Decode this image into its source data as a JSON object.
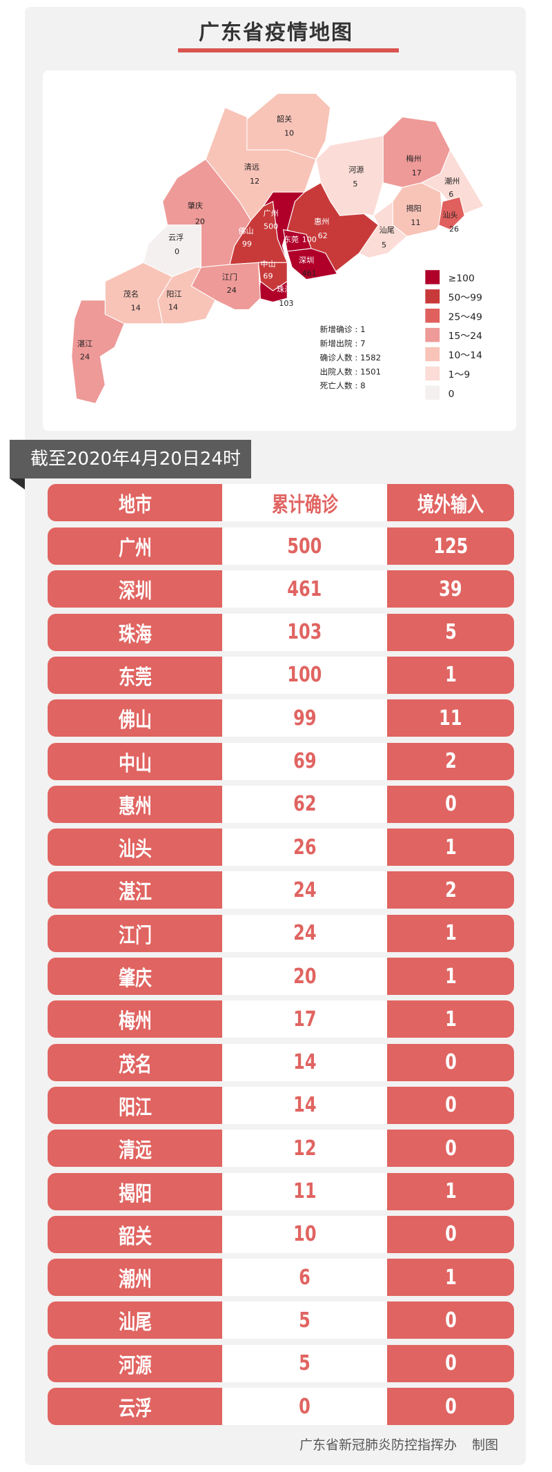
{
  "title": "广东省疫情地图",
  "map": {
    "regions": [
      {
        "name": "韶关",
        "value": "10"
      },
      {
        "name": "清远",
        "value": "12"
      },
      {
        "name": "河源",
        "value": "5"
      },
      {
        "name": "梅州",
        "value": "17"
      },
      {
        "name": "潮州",
        "value": "6"
      },
      {
        "name": "揭阳",
        "value": "11"
      },
      {
        "name": "汕头",
        "value": "26"
      },
      {
        "name": "汕尾",
        "value": "5"
      },
      {
        "name": "惠州",
        "value": "62"
      },
      {
        "name": "广州",
        "value": "500"
      },
      {
        "name": "东莞",
        "value": "100"
      },
      {
        "name": "深圳",
        "value": "461"
      },
      {
        "name": "佛山",
        "value": "99"
      },
      {
        "name": "中山",
        "value": "69"
      },
      {
        "name": "珠海",
        "value": "103"
      },
      {
        "name": "江门",
        "value": "24"
      },
      {
        "name": "肇庆",
        "value": "20"
      },
      {
        "name": "云浮",
        "value": "0"
      },
      {
        "name": "茂名",
        "value": "14"
      },
      {
        "name": "阳江",
        "value": "14"
      },
      {
        "name": "湛江",
        "value": "24"
      }
    ],
    "stats": [
      {
        "label": "新增确诊",
        "value": "1"
      },
      {
        "label": "新增出院",
        "value": "7"
      },
      {
        "label": "确诊人数",
        "value": "1582"
      },
      {
        "label": "出院人数",
        "value": "1501"
      },
      {
        "label": "死亡人数",
        "value": "8"
      }
    ],
    "legend": [
      {
        "label": "≥100",
        "color": "#b0002a"
      },
      {
        "label": "50～99",
        "color": "#c83a3a"
      },
      {
        "label": "25～49",
        "color": "#e0605e"
      },
      {
        "label": "15～24",
        "color": "#ee9a98"
      },
      {
        "label": "10～14",
        "color": "#f8c4b8"
      },
      {
        "label": "1～9",
        "color": "#fbdcd6"
      },
      {
        "label": "0",
        "color": "#f4f0f0"
      }
    ]
  },
  "date_banner": "截至2020年4月20日24时",
  "table": {
    "headers": [
      "地市",
      "累计确诊",
      "境外输入"
    ],
    "rows": [
      [
        "广州",
        "500",
        "125"
      ],
      [
        "深圳",
        "461",
        "39"
      ],
      [
        "珠海",
        "103",
        "5"
      ],
      [
        "东莞",
        "100",
        "1"
      ],
      [
        "佛山",
        "99",
        "11"
      ],
      [
        "中山",
        "69",
        "2"
      ],
      [
        "惠州",
        "62",
        "0"
      ],
      [
        "汕头",
        "26",
        "1"
      ],
      [
        "湛江",
        "24",
        "2"
      ],
      [
        "江门",
        "24",
        "1"
      ],
      [
        "肇庆",
        "20",
        "1"
      ],
      [
        "梅州",
        "17",
        "1"
      ],
      [
        "茂名",
        "14",
        "0"
      ],
      [
        "阳江",
        "14",
        "0"
      ],
      [
        "清远",
        "12",
        "0"
      ],
      [
        "揭阳",
        "11",
        "1"
      ],
      [
        "韶关",
        "10",
        "0"
      ],
      [
        "潮州",
        "6",
        "1"
      ],
      [
        "汕尾",
        "5",
        "0"
      ],
      [
        "河源",
        "5",
        "0"
      ],
      [
        "云浮",
        "0",
        "0"
      ]
    ]
  },
  "footer": {
    "org": "广东省新冠肺炎防控指挥办",
    "suffix": "制图"
  }
}
